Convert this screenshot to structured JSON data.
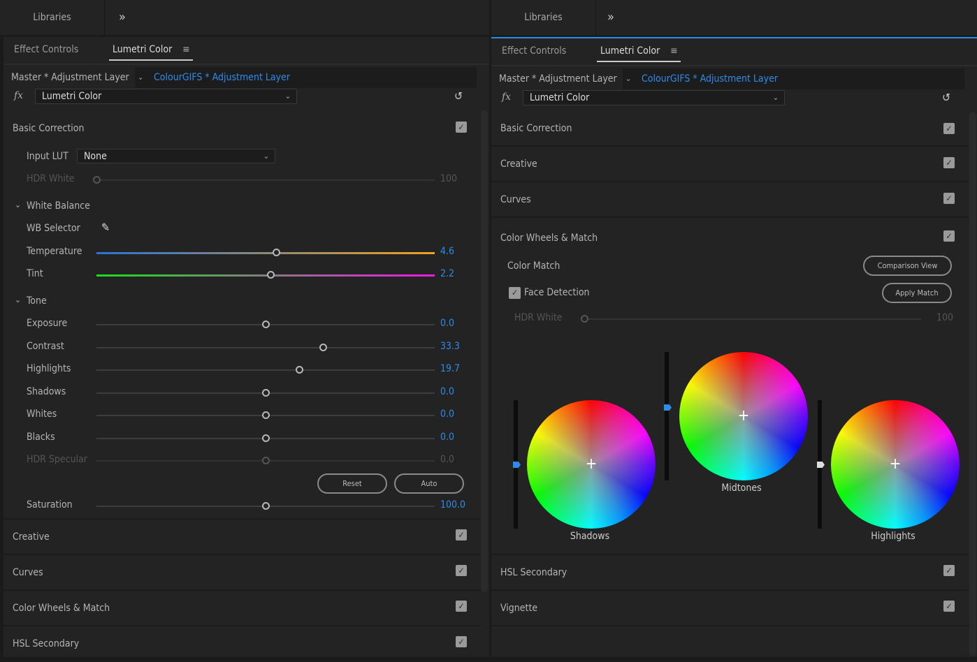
{
  "top_tabs": {
    "left": "Libraries",
    "right": "Libraries",
    "overflow_icon": "double-chevron-right-icon"
  },
  "left": {
    "tabs": [
      "Effect Controls",
      "Lumetri Color"
    ],
    "master": "Master * Adjustment Layer",
    "clip": "ColourGIFS * Adjustment Layer",
    "fx": "fx",
    "effect": "Lumetri Color",
    "basic": {
      "title": "Basic Correction",
      "checked": true,
      "input_lut_label": "Input LUT",
      "input_lut": "None",
      "hdr_white": {
        "label": "HDR White",
        "value": "100",
        "level": 0
      },
      "white_balance": "White Balance",
      "wb_selector": "WB Selector",
      "temperature": {
        "label": "Temperature",
        "value": "4.6",
        "level": 0.53
      },
      "tint": {
        "label": "Tint",
        "value": "2.2",
        "level": 0.515
      },
      "tone": "Tone",
      "sliders": [
        {
          "label": "Exposure",
          "value": "0.0",
          "level": 0.5
        },
        {
          "label": "Contrast",
          "value": "33.3",
          "level": 0.67
        },
        {
          "label": "Highlights",
          "value": "19.7",
          "level": 0.6
        },
        {
          "label": "Shadows",
          "value": "0.0",
          "level": 0.5
        },
        {
          "label": "Whites",
          "value": "0.0",
          "level": 0.5
        },
        {
          "label": "Blacks",
          "value": "0.0",
          "level": 0.5
        }
      ],
      "hdr_specular": {
        "label": "HDR Specular",
        "value": "0.0",
        "level": 0.5
      },
      "reset": "Reset",
      "auto": "Auto",
      "saturation": {
        "label": "Saturation",
        "value": "100.0",
        "level": 0.5
      }
    },
    "sections": [
      "Creative",
      "Curves",
      "Color Wheels & Match",
      "HSL Secondary"
    ]
  },
  "right": {
    "tabs": [
      "Effect Controls",
      "Lumetri Color"
    ],
    "master": "Master * Adjustment Layer",
    "clip": "ColourGIFS * Adjustment Layer",
    "fx": "fx",
    "effect": "Lumetri Color",
    "sections_top": [
      "Basic Correction",
      "Creative",
      "Curves"
    ],
    "wheels_title": "Color Wheels & Match",
    "color_match": "Color Match",
    "comparison_view": "Comparison View",
    "face_detection": "Face Detection",
    "face_detection_checked": true,
    "apply_match": "Apply Match",
    "hdr_white": {
      "label": "HDR White",
      "value": "100",
      "level": 0
    },
    "wheels": [
      {
        "label": "Shadows",
        "level": 0.5
      },
      {
        "label": "Midtones",
        "level": 0.57
      },
      {
        "label": "Highlights",
        "level": 0.5
      }
    ],
    "sections_bottom": [
      "HSL Secondary",
      "Vignette"
    ]
  }
}
